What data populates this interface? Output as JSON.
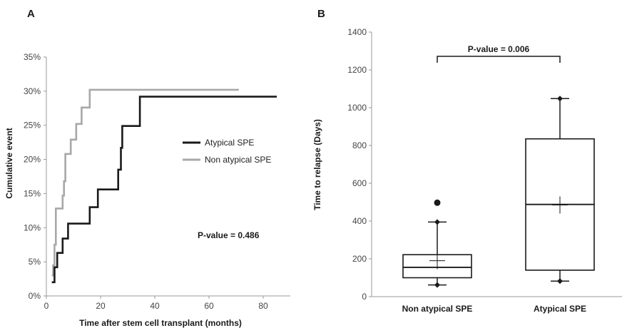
{
  "chart_data": [
    {
      "panel": "A",
      "type": "line",
      "step": true,
      "xlabel": "Time after stem cell transplant (months)",
      "ylabel": "Cumulative event",
      "xlim": [
        0,
        90
      ],
      "ylim": [
        0,
        35
      ],
      "xticks": [
        0,
        20,
        40,
        60,
        80
      ],
      "xtick_labels": [
        "0",
        "20",
        "40",
        "60",
        "80"
      ],
      "yticks": [
        0,
        5,
        10,
        15,
        20,
        25,
        30,
        35
      ],
      "ytick_labels": [
        "0%",
        "5%",
        "10%",
        "15%",
        "20%",
        "25%",
        "30%",
        "35%"
      ],
      "legend_position": "right",
      "annotation": "P-value = 0.486",
      "series": [
        {
          "name": "Atypical SPE",
          "color": "#1a1a1a",
          "x": [
            2,
            3,
            4,
            6,
            8,
            16,
            19,
            26.5,
            27.5,
            28,
            34.5,
            85
          ],
          "y": [
            2.0,
            4.2,
            6.3,
            8.4,
            10.6,
            13.0,
            15.6,
            18.5,
            21.7,
            24.9,
            29.2,
            29.2
          ]
        },
        {
          "name": "Non atypical SPE",
          "color": "#a8a8a8",
          "x": [
            2,
            2.5,
            3,
            3.5,
            6,
            6.5,
            7,
            9,
            11,
            13,
            16,
            71
          ],
          "y": [
            3.0,
            4.5,
            7.5,
            12.8,
            14.7,
            16.8,
            20.8,
            22.9,
            25.2,
            27.6,
            30.2,
            30.2
          ]
        }
      ]
    },
    {
      "panel": "B",
      "type": "box",
      "xlabel": "",
      "ylabel": "Time to relapse (Days)",
      "ylim": [
        0,
        1400
      ],
      "yticks": [
        0,
        200,
        400,
        600,
        800,
        1000,
        1200,
        1400
      ],
      "ytick_labels": [
        "0",
        "200",
        "400",
        "600",
        "800",
        "1000",
        "1200",
        "1400"
      ],
      "categories": [
        "Non atypical SPE",
        "Atypical SPE"
      ],
      "annotation": "P-value = 0.006",
      "boxes": [
        {
          "name": "Non atypical SPE",
          "min": 62,
          "q1": 100,
          "median": 155,
          "q3": 222,
          "max": 395,
          "mean": 190,
          "outliers": [
            497
          ]
        },
        {
          "name": "Atypical SPE",
          "min": 82,
          "q1": 140,
          "median": 488,
          "q3": 835,
          "max": 1048,
          "mean": 485,
          "outliers": []
        }
      ]
    }
  ]
}
